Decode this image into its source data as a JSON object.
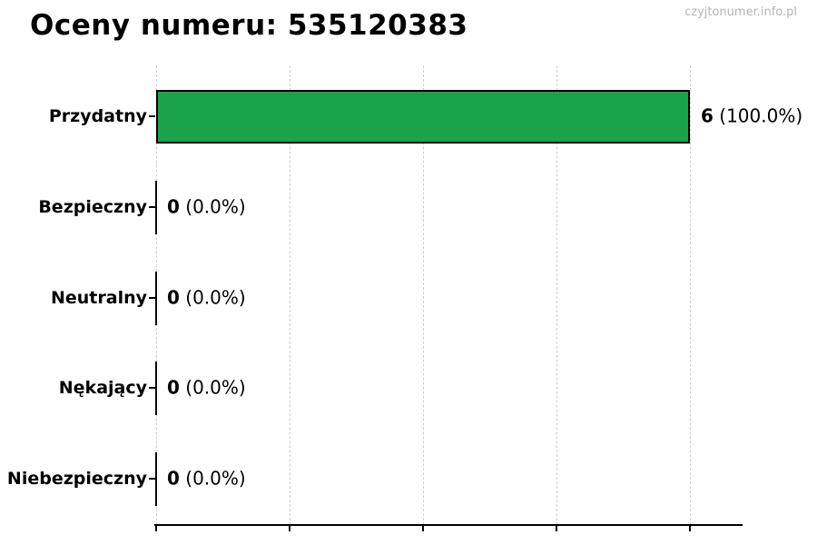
{
  "title": "Oceny numeru: 535120383",
  "watermark": "czyjtonumer.info.pl",
  "chart_data": {
    "type": "bar",
    "orientation": "horizontal",
    "title": "Oceny numeru: 535120383",
    "categories": [
      "Przydatny",
      "Bezpieczny",
      "Neutralny",
      "Nękający",
      "Niebezpieczny"
    ],
    "values": [
      6,
      0,
      0,
      0,
      0
    ],
    "percents": [
      "100.0%",
      "0.0%",
      "0.0%",
      "0.0%",
      "0.0%"
    ],
    "value_labels": [
      "6 (100.0%)",
      "0 (0.0%)",
      "0 (0.0%)",
      "0 (0.0%)",
      "0 (0.0%)"
    ],
    "xlabel": "",
    "ylabel": "",
    "xlim": [
      0,
      6
    ],
    "x_gridline_values": [
      0,
      1.5,
      3,
      4.5,
      6
    ],
    "grid": {
      "axis": "x",
      "style": "dashed",
      "color": "#cfcfcf"
    },
    "legend": "none",
    "colors": {
      "bar_fill": "#1aa34a",
      "bar_edge": "#000000",
      "axis": "#000000",
      "label_text": "#000000",
      "watermark_text": "#b4b4b4"
    }
  }
}
